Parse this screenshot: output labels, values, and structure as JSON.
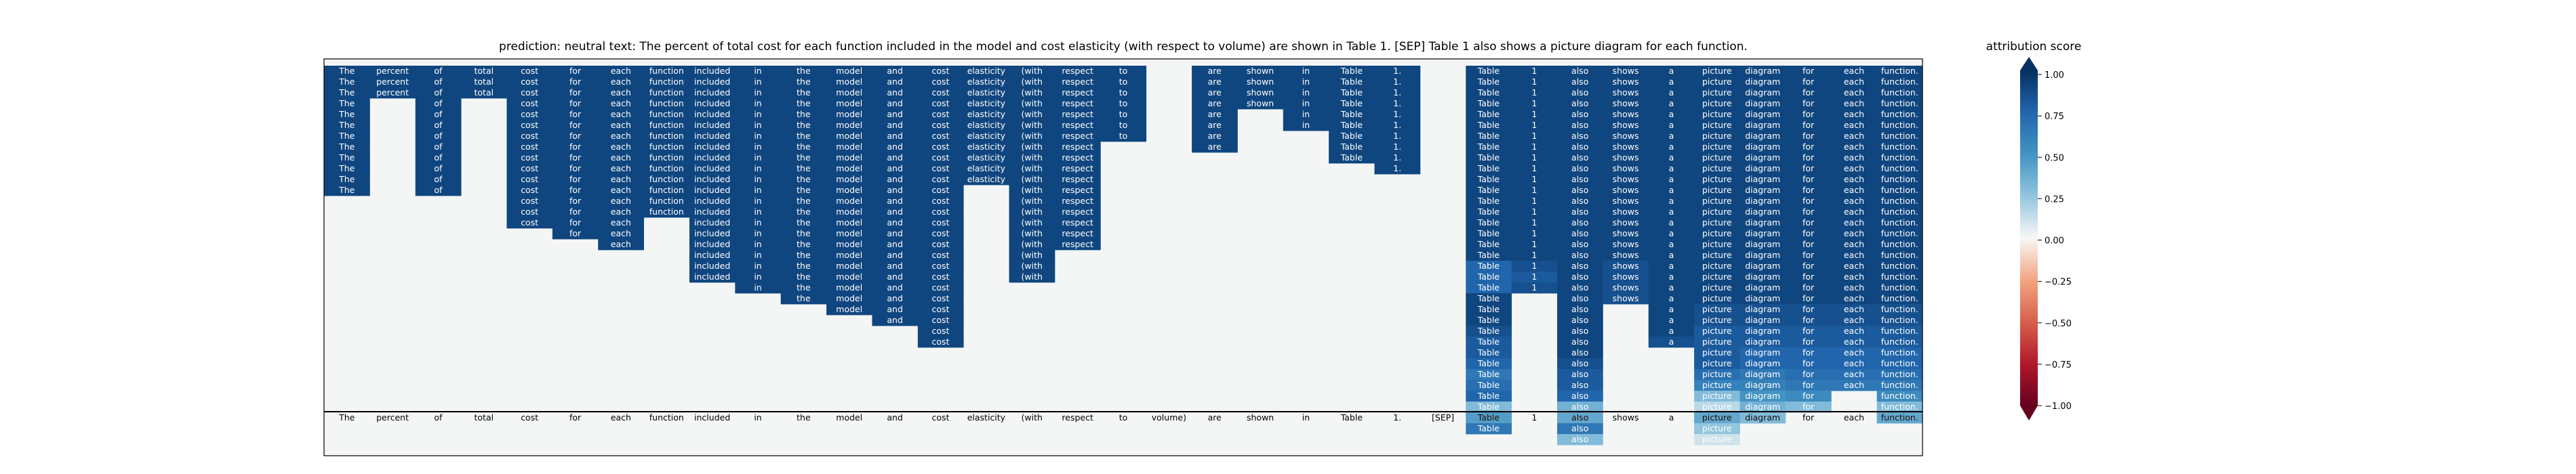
{
  "chart_data": {
    "type": "heatmap",
    "title": "prediction:  neutral     text:  The percent of total cost for each function included in the model and cost elasticity (with respect to volume) are shown in Table 1. [SEP] Table 1 also shows a picture diagram for each function.",
    "tokens": [
      "The",
      "percent",
      "of",
      "total",
      "cost",
      "for",
      "each",
      "function",
      "included",
      "in",
      "the",
      "model",
      "and",
      "cost",
      "elasticity",
      "(with",
      "respect",
      "to",
      "volume)",
      "are",
      "shown",
      "in",
      "Table",
      "1.",
      "[SEP]",
      "Table",
      "1",
      "also",
      "shows",
      "a",
      "picture",
      "diagram",
      "for",
      "each",
      "function."
    ],
    "x_tick_labels": [
      "The",
      "percent",
      "of",
      "total",
      "cost",
      "for",
      "each",
      "function",
      "included",
      "in",
      "the",
      "model",
      "and",
      "cost",
      "elasticity",
      "(with",
      "respect",
      "to",
      "volume)",
      "are",
      "shown",
      "in",
      "Table",
      "1.",
      "[SEP]",
      "Table",
      "1",
      "also",
      "shows",
      "a",
      "picture",
      "diagram",
      "for",
      "each",
      "function."
    ],
    "num_rows": 35,
    "column_fill_rows": [
      12,
      3,
      12,
      3,
      15,
      16,
      17,
      14,
      20,
      21,
      22,
      23,
      24,
      26,
      11,
      20,
      17,
      7,
      0,
      8,
      4,
      6,
      9,
      10,
      0,
      34,
      21,
      35,
      22,
      26,
      35,
      33,
      32,
      30,
      33
    ],
    "column_values": [
      [
        0.9,
        0.9,
        0.9,
        0.9,
        0.9,
        0.9,
        0.9,
        0.9,
        0.9,
        0.9,
        0.9,
        0.9
      ],
      [
        0.9,
        0.9,
        0.9
      ],
      [
        0.9,
        0.9,
        0.9,
        0.9,
        0.9,
        0.9,
        0.9,
        0.9,
        0.9,
        0.9,
        0.9,
        0.9
      ],
      [
        0.9,
        0.9,
        0.9
      ],
      [
        0.9,
        0.9,
        0.9,
        0.9,
        0.9,
        0.9,
        0.9,
        0.9,
        0.9,
        0.9,
        0.9,
        0.9,
        0.9,
        0.9,
        0.9
      ],
      [
        0.9,
        0.9,
        0.9,
        0.9,
        0.9,
        0.9,
        0.9,
        0.9,
        0.9,
        0.9,
        0.9,
        0.9,
        0.9,
        0.9,
        0.9,
        0.9
      ],
      [
        0.9,
        0.9,
        0.9,
        0.9,
        0.9,
        0.9,
        0.9,
        0.9,
        0.9,
        0.9,
        0.9,
        0.9,
        0.9,
        0.9,
        0.9,
        0.9,
        0.9
      ],
      [
        0.9,
        0.9,
        0.9,
        0.9,
        0.9,
        0.9,
        0.9,
        0.9,
        0.9,
        0.9,
        0.9,
        0.9,
        0.9,
        0.9
      ],
      [
        0.9,
        0.9,
        0.9,
        0.9,
        0.9,
        0.9,
        0.9,
        0.9,
        0.9,
        0.9,
        0.9,
        0.9,
        0.9,
        0.9,
        0.9,
        0.9,
        0.9,
        0.9,
        0.9,
        0.9
      ],
      [
        0.9,
        0.9,
        0.9,
        0.9,
        0.9,
        0.9,
        0.9,
        0.9,
        0.9,
        0.9,
        0.9,
        0.9,
        0.9,
        0.9,
        0.9,
        0.9,
        0.9,
        0.9,
        0.9,
        0.9,
        0.9
      ],
      [
        0.9,
        0.9,
        0.9,
        0.9,
        0.9,
        0.9,
        0.9,
        0.9,
        0.9,
        0.9,
        0.9,
        0.9,
        0.9,
        0.9,
        0.9,
        0.9,
        0.9,
        0.9,
        0.9,
        0.9,
        0.9,
        0.9
      ],
      [
        0.9,
        0.9,
        0.9,
        0.9,
        0.9,
        0.9,
        0.9,
        0.9,
        0.9,
        0.9,
        0.9,
        0.9,
        0.9,
        0.9,
        0.9,
        0.9,
        0.9,
        0.9,
        0.9,
        0.9,
        0.9,
        0.9,
        0.9
      ],
      [
        0.9,
        0.9,
        0.9,
        0.9,
        0.9,
        0.9,
        0.9,
        0.9,
        0.9,
        0.9,
        0.9,
        0.9,
        0.9,
        0.9,
        0.9,
        0.9,
        0.9,
        0.9,
        0.9,
        0.9,
        0.9,
        0.9,
        0.9,
        0.9
      ],
      [
        0.9,
        0.9,
        0.9,
        0.9,
        0.9,
        0.9,
        0.9,
        0.9,
        0.9,
        0.9,
        0.9,
        0.9,
        0.9,
        0.9,
        0.9,
        0.9,
        0.9,
        0.9,
        0.9,
        0.9,
        0.9,
        0.9,
        0.9,
        0.9,
        0.9,
        0.9
      ],
      [
        0.9,
        0.9,
        0.9,
        0.9,
        0.9,
        0.9,
        0.9,
        0.9,
        0.9,
        0.9,
        0.9
      ],
      [
        0.9,
        0.9,
        0.9,
        0.9,
        0.9,
        0.9,
        0.9,
        0.9,
        0.9,
        0.9,
        0.9,
        0.9,
        0.9,
        0.9,
        0.9,
        0.9,
        0.9,
        0.9,
        0.9,
        0.9
      ],
      [
        0.9,
        0.9,
        0.9,
        0.9,
        0.9,
        0.9,
        0.9,
        0.9,
        0.9,
        0.9,
        0.9,
        0.9,
        0.9,
        0.9,
        0.9,
        0.9,
        0.9
      ],
      [
        0.9,
        0.9,
        0.9,
        0.9,
        0.9,
        0.9,
        0.9
      ],
      [],
      [
        0.9,
        0.9,
        0.9,
        0.9,
        0.9,
        0.9,
        0.9,
        0.9
      ],
      [
        0.9,
        0.9,
        0.9,
        0.9
      ],
      [
        0.9,
        0.9,
        0.9,
        0.9,
        0.9,
        0.9
      ],
      [
        0.9,
        0.9,
        0.9,
        0.9,
        0.9,
        0.9,
        0.9,
        0.9,
        0.9
      ],
      [
        0.9,
        0.9,
        0.9,
        0.9,
        0.9,
        0.9,
        0.9,
        0.9,
        0.9,
        0.9
      ],
      [],
      [
        0.9,
        0.9,
        0.9,
        0.9,
        0.9,
        0.9,
        0.9,
        0.9,
        0.9,
        0.9,
        0.9,
        0.9,
        0.9,
        0.9,
        0.9,
        0.9,
        0.9,
        0.9,
        0.75,
        0.75,
        0.75,
        0.9,
        0.9,
        0.9,
        0.85,
        0.8,
        0.8,
        0.75,
        0.65,
        0.7,
        0.75,
        0.3,
        0.45,
        0.65
      ],
      [
        0.9,
        0.9,
        0.9,
        0.9,
        0.9,
        0.9,
        0.9,
        0.9,
        0.9,
        0.9,
        0.9,
        0.9,
        0.9,
        0.9,
        0.9,
        0.9,
        0.9,
        0.9,
        0.85,
        0.8,
        0.85
      ],
      [
        0.9,
        0.9,
        0.9,
        0.9,
        0.9,
        0.9,
        0.9,
        0.9,
        0.9,
        0.9,
        0.9,
        0.9,
        0.9,
        0.9,
        0.9,
        0.9,
        0.9,
        0.9,
        0.9,
        0.9,
        0.9,
        0.9,
        0.9,
        0.9,
        0.9,
        0.9,
        0.9,
        0.85,
        0.8,
        0.8,
        0.75,
        0.35,
        0.4,
        0.65,
        0.3
      ],
      [
        0.9,
        0.9,
        0.9,
        0.9,
        0.9,
        0.9,
        0.9,
        0.9,
        0.9,
        0.9,
        0.9,
        0.9,
        0.9,
        0.9,
        0.9,
        0.9,
        0.9,
        0.9,
        0.85,
        0.85,
        0.85,
        0.85
      ],
      [
        0.9,
        0.9,
        0.9,
        0.9,
        0.9,
        0.9,
        0.9,
        0.9,
        0.9,
        0.9,
        0.9,
        0.9,
        0.9,
        0.9,
        0.9,
        0.9,
        0.9,
        0.9,
        0.9,
        0.9,
        0.9,
        0.9,
        0.9,
        0.9,
        0.9,
        0.85
      ],
      [
        0.9,
        0.9,
        0.9,
        0.9,
        0.9,
        0.9,
        0.9,
        0.9,
        0.9,
        0.9,
        0.9,
        0.9,
        0.9,
        0.9,
        0.9,
        0.9,
        0.9,
        0.9,
        0.9,
        0.9,
        0.9,
        0.9,
        0.85,
        0.85,
        0.8,
        0.8,
        0.8,
        0.8,
        0.7,
        0.6,
        0.3,
        0.15,
        0.4,
        0.25,
        0.1
      ],
      [
        0.9,
        0.9,
        0.9,
        0.9,
        0.9,
        0.9,
        0.9,
        0.9,
        0.9,
        0.9,
        0.9,
        0.9,
        0.9,
        0.9,
        0.9,
        0.9,
        0.9,
        0.9,
        0.9,
        0.9,
        0.9,
        0.9,
        0.85,
        0.85,
        0.8,
        0.8,
        0.75,
        0.75,
        0.65,
        0.6,
        0.5,
        0.35,
        0.3
      ],
      [
        0.9,
        0.9,
        0.9,
        0.9,
        0.9,
        0.9,
        0.9,
        0.9,
        0.9,
        0.9,
        0.9,
        0.9,
        0.9,
        0.9,
        0.9,
        0.9,
        0.9,
        0.9,
        0.9,
        0.9,
        0.9,
        0.9,
        0.85,
        0.85,
        0.8,
        0.8,
        0.75,
        0.75,
        0.7,
        0.65,
        0.55,
        0.3
      ],
      [
        0.9,
        0.9,
        0.9,
        0.9,
        0.9,
        0.9,
        0.9,
        0.9,
        0.9,
        0.9,
        0.9,
        0.9,
        0.9,
        0.9,
        0.9,
        0.9,
        0.9,
        0.9,
        0.9,
        0.9,
        0.9,
        0.9,
        0.85,
        0.85,
        0.8,
        0.8,
        0.75,
        0.75,
        0.7,
        0.65
      ],
      [
        0.9,
        0.9,
        0.9,
        0.9,
        0.9,
        0.9,
        0.9,
        0.9,
        0.9,
        0.9,
        0.9,
        0.9,
        0.9,
        0.9,
        0.9,
        0.9,
        0.9,
        0.9,
        0.9,
        0.9,
        0.9,
        0.9,
        0.85,
        0.85,
        0.8,
        0.8,
        0.75,
        0.75,
        0.7,
        0.65,
        0.55,
        0.3,
        0.4
      ]
    ],
    "colorbar": {
      "label": "attribution score",
      "range": [
        -1.0,
        1.0
      ],
      "ticks": [
        "1.00",
        "0.75",
        "0.50",
        "0.25",
        "0.00",
        "−0.25",
        "−0.50",
        "−0.75",
        "−1.00"
      ],
      "colormap": "RdBu"
    }
  },
  "colors": {
    "background_cell": "#f4f6f6",
    "frame": "#000000"
  }
}
